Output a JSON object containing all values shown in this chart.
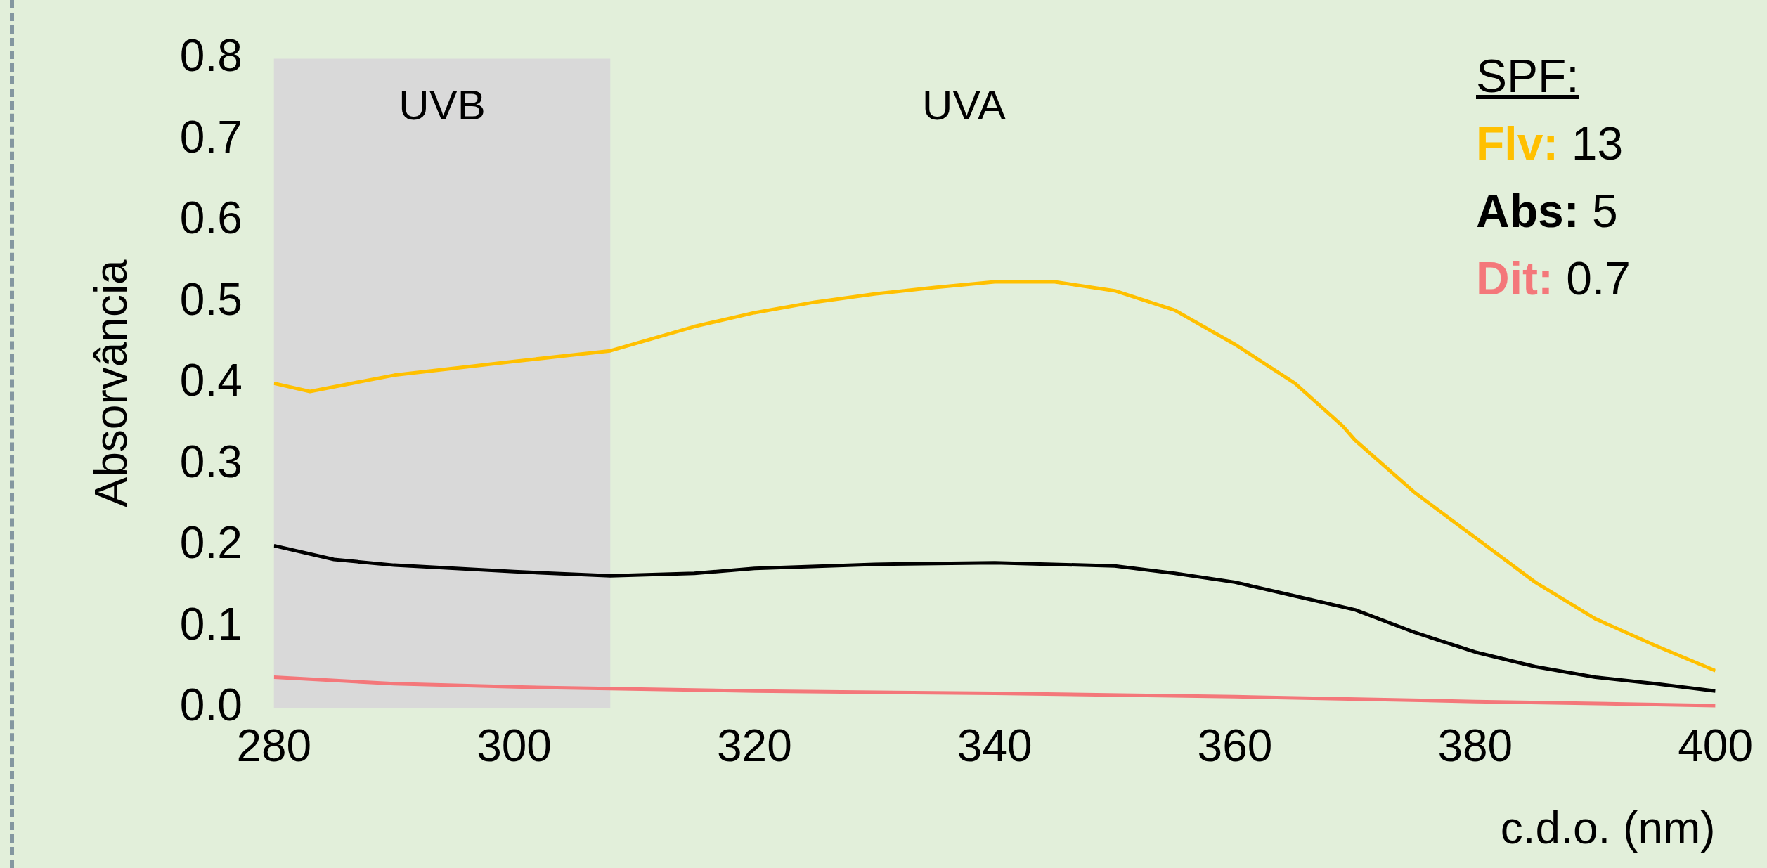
{
  "chart_data": {
    "type": "line",
    "xlabel": "c.d.o. (nm)",
    "ylabel": "Absorvância",
    "legend_title": "SPF:",
    "legend": "top right",
    "grid": false,
    "marker": "none",
    "line_style": "solid",
    "xlim": [
      280,
      400
    ],
    "xticks": [
      280,
      300,
      320,
      340,
      360,
      380,
      400
    ],
    "ylim": [
      0,
      0.8
    ],
    "yticks": [
      {
        "value": 0,
        "label": "0.0"
      },
      {
        "value": 0.1,
        "label": "0.1"
      },
      {
        "value": 0.2,
        "label": "0.2"
      },
      {
        "value": 0.3,
        "label": "0.3"
      },
      {
        "value": 0.4,
        "label": "0.4"
      },
      {
        "value": 0.5,
        "label": "0.5"
      },
      {
        "value": 0.6,
        "label": "0.6"
      },
      {
        "value": 0.7,
        "label": "0.7"
      },
      {
        "value": 0.8,
        "label": "0.8"
      }
    ],
    "bands": [
      {
        "axis": "x",
        "from": 280,
        "to": 308,
        "label": "UVB",
        "color": "#d9d9d9"
      }
    ],
    "annotations": [
      "UVA",
      "13",
      "5",
      "0.7"
    ],
    "series": [
      {
        "name": "Flv:",
        "color": "#ffc000",
        "x": [
          280,
          283,
          290,
          300,
          308,
          315,
          320,
          325,
          330,
          335,
          340,
          345,
          350,
          355,
          360,
          365,
          369,
          370,
          375,
          380,
          385,
          390,
          395,
          400
        ],
        "values": [
          0.4,
          0.39,
          0.41,
          0.427,
          0.44,
          0.47,
          0.487,
          0.5,
          0.51,
          0.518,
          0.525,
          0.525,
          0.514,
          0.49,
          0.448,
          0.4,
          0.347,
          0.33,
          0.265,
          0.21,
          0.155,
          0.11,
          0.077,
          0.046
        ]
      },
      {
        "name": "Abs:",
        "color": "#000000",
        "x": [
          280,
          285,
          290,
          300,
          308,
          315,
          320,
          330,
          340,
          350,
          355,
          360,
          365,
          370,
          375,
          380,
          385,
          390,
          395,
          400
        ],
        "values": [
          0.2,
          0.183,
          0.176,
          0.168,
          0.163,
          0.166,
          0.172,
          0.177,
          0.179,
          0.175,
          0.166,
          0.155,
          0.138,
          0.121,
          0.093,
          0.069,
          0.051,
          0.038,
          0.03,
          0.021
        ]
      },
      {
        "name": "Dit:",
        "color": "#f4777a",
        "x": [
          280,
          290,
          300,
          320,
          340,
          360,
          380,
          400
        ],
        "values": [
          0.038,
          0.03,
          0.026,
          0.021,
          0.018,
          0.014,
          0.008,
          0.003
        ]
      }
    ]
  }
}
